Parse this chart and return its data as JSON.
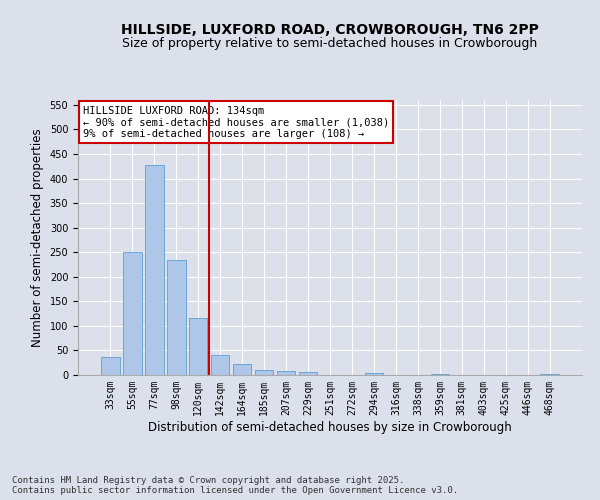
{
  "title": "HILLSIDE, LUXFORD ROAD, CROWBOROUGH, TN6 2PP",
  "subtitle": "Size of property relative to semi-detached houses in Crowborough",
  "xlabel": "Distribution of semi-detached houses by size in Crowborough",
  "ylabel": "Number of semi-detached properties",
  "categories": [
    "33sqm",
    "55sqm",
    "77sqm",
    "98sqm",
    "120sqm",
    "142sqm",
    "164sqm",
    "185sqm",
    "207sqm",
    "229sqm",
    "251sqm",
    "272sqm",
    "294sqm",
    "316sqm",
    "338sqm",
    "359sqm",
    "381sqm",
    "403sqm",
    "425sqm",
    "446sqm",
    "468sqm"
  ],
  "values": [
    37,
    251,
    427,
    235,
    117,
    40,
    22,
    10,
    8,
    6,
    0,
    0,
    4,
    0,
    0,
    3,
    0,
    0,
    0,
    0,
    3
  ],
  "bar_color": "#aec6e8",
  "bar_edge_color": "#5a9fd4",
  "vline_x_idx": 4,
  "vline_color": "#cc0000",
  "annotation_title": "HILLSIDE LUXFORD ROAD: 134sqm",
  "annotation_line1": "← 90% of semi-detached houses are smaller (1,038)",
  "annotation_line2": "9% of semi-detached houses are larger (108) →",
  "annotation_box_color": "#cc0000",
  "ylim": [
    0,
    560
  ],
  "yticks": [
    0,
    50,
    100,
    150,
    200,
    250,
    300,
    350,
    400,
    450,
    500,
    550
  ],
  "background_color": "#dce0ea",
  "plot_background": "#dce0ea",
  "footer": "Contains HM Land Registry data © Crown copyright and database right 2025.\nContains public sector information licensed under the Open Government Licence v3.0.",
  "title_fontsize": 10,
  "subtitle_fontsize": 9,
  "axis_label_fontsize": 8.5,
  "tick_fontsize": 7,
  "footer_fontsize": 6.5,
  "annotation_fontsize": 7.5
}
